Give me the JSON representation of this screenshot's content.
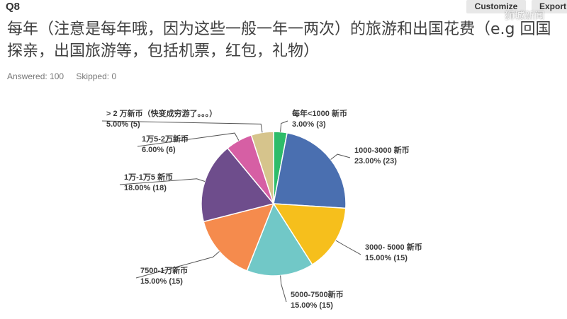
{
  "header": {
    "question_number": "Q8",
    "customize_label": "Customize",
    "export_label": "Export",
    "watermark": "狮城新闻"
  },
  "question": {
    "title": "每年（注意是每年哦，因为这些一般一年一两次）的旅游和出国花费（e.g 回国探亲，出国旅游等，包括机票，红包，礼物）",
    "answered": "Answered: 100",
    "skipped": "Skipped: 0"
  },
  "chart_data": {
    "type": "pie",
    "start_angle_deg": 0,
    "direction": "clockwise",
    "slices": [
      {
        "label": "每年<1000 新币",
        "value_label": "3.00% (3)",
        "percent": 3.0,
        "count": 3,
        "color": "#2ebc6a"
      },
      {
        "label": "1000-3000 新币",
        "value_label": "23.00% (23)",
        "percent": 23.0,
        "count": 23,
        "color": "#4a6fb0"
      },
      {
        "label": "3000- 5000 新币",
        "value_label": "15.00% (15)",
        "percent": 15.0,
        "count": 15,
        "color": "#f6bf1c"
      },
      {
        "label": "5000-7500新币",
        "value_label": "15.00% (15)",
        "percent": 15.0,
        "count": 15,
        "color": "#71c8c7"
      },
      {
        "label": "7500-1万新币",
        "value_label": "15.00% (15)",
        "percent": 15.0,
        "count": 15,
        "color": "#f58b4d"
      },
      {
        "label": "1万-1万5 新币",
        "value_label": "18.00% (18)",
        "percent": 18.0,
        "count": 18,
        "color": "#6e4d8c"
      },
      {
        "label": "1万5-2万新币",
        "value_label": "6.00% (6)",
        "percent": 6.0,
        "count": 6,
        "color": "#d65fa4"
      },
      {
        "label": "> 2 万新币（快变成穷游了。。。）",
        "value_label": "5.00% (5)",
        "percent": 5.0,
        "count": 5,
        "color": "#d6c48c"
      }
    ]
  }
}
